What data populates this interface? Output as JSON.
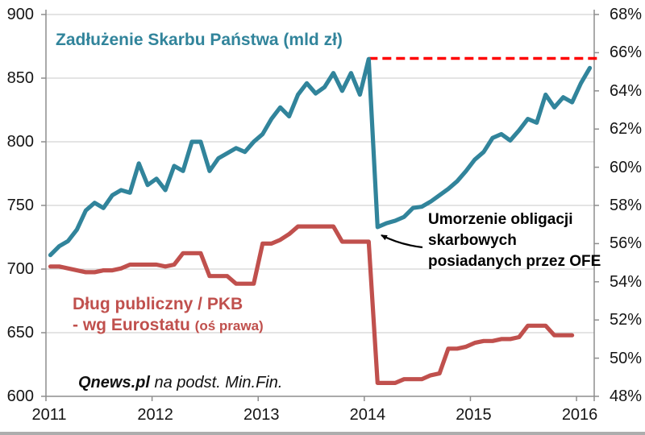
{
  "chart_data": {
    "type": "line",
    "title": "Zadłużenie Skarbu Państwa (mld zł)",
    "x_axis": {
      "tick_labels": [
        "2011",
        "2012",
        "2013",
        "2014",
        "2015",
        "2016"
      ],
      "start": "2011-01",
      "frequency": "monthly"
    },
    "left_axis": {
      "min": 600,
      "max": 900,
      "step": 50,
      "tick_labels": [
        "900",
        "850",
        "800",
        "750",
        "700",
        "650",
        "600"
      ]
    },
    "right_axis": {
      "min": 48,
      "max": 68,
      "step": 2,
      "tick_labels": [
        "68%",
        "66%",
        "64%",
        "62%",
        "60%",
        "58%",
        "56%",
        "54%",
        "52%",
        "50%",
        "48%"
      ]
    },
    "series": [
      {
        "name": "Zadłużenie Skarbu Państwa (mld zł)",
        "axis": "left",
        "color": "#31849B",
        "values": [
          711,
          718,
          722,
          731,
          746,
          752,
          748,
          758,
          762,
          760,
          783,
          766,
          771,
          762,
          781,
          777,
          800,
          800,
          777,
          787,
          791,
          795,
          792,
          800,
          806,
          818,
          827,
          820,
          837,
          846,
          838,
          843,
          854,
          840,
          854,
          837,
          865,
          733,
          736,
          738,
          741,
          748,
          749,
          753,
          758,
          763,
          769,
          777,
          786,
          792,
          803,
          806,
          801,
          809,
          818,
          815,
          837,
          827,
          835,
          831,
          846,
          858
        ]
      },
      {
        "name": "Dług publiczny / PKB - wg Eurostatu (oś prawa)",
        "axis": "right",
        "color": "#C0504D",
        "values": [
          54.8,
          54.8,
          54.7,
          54.6,
          54.5,
          54.5,
          54.6,
          54.6,
          54.7,
          54.9,
          54.9,
          54.9,
          54.9,
          54.8,
          54.9,
          55.5,
          55.5,
          55.5,
          54.3,
          54.3,
          54.3,
          53.9,
          53.9,
          53.9,
          56.0,
          56.0,
          56.2,
          56.5,
          56.9,
          56.9,
          56.9,
          56.9,
          56.9,
          56.1,
          56.1,
          56.1,
          56.1,
          48.7,
          48.7,
          48.7,
          48.9,
          48.9,
          48.9,
          49.1,
          49.2,
          50.5,
          50.5,
          50.6,
          50.8,
          50.9,
          50.9,
          51.0,
          51.0,
          51.1,
          51.7,
          51.7,
          51.7,
          51.2,
          51.2,
          51.2
        ]
      }
    ],
    "reference_line": {
      "axis": "left",
      "value": 865.5,
      "color": "#FF0000",
      "style": "dashed",
      "start_index": 36
    },
    "labels": {
      "series2_line1": "Dług publiczny / PKB",
      "series2_line2": "- wg Eurostatu ",
      "series2_line2_small": "(oś prawa)"
    },
    "annotation": {
      "line1": "Umorzenie obligacji",
      "line2": "skarbowych",
      "line3": "posiadanych przez OFE"
    },
    "source_note": {
      "bold": "Qnews.pl",
      "rest": " na podst. Min.Fin."
    },
    "style": {
      "grid_color": "#C8C8C8",
      "axis_color": "#8E8E8E",
      "tick_text_color": "#151515",
      "bottom_bar_color": "#ADADAD"
    }
  }
}
